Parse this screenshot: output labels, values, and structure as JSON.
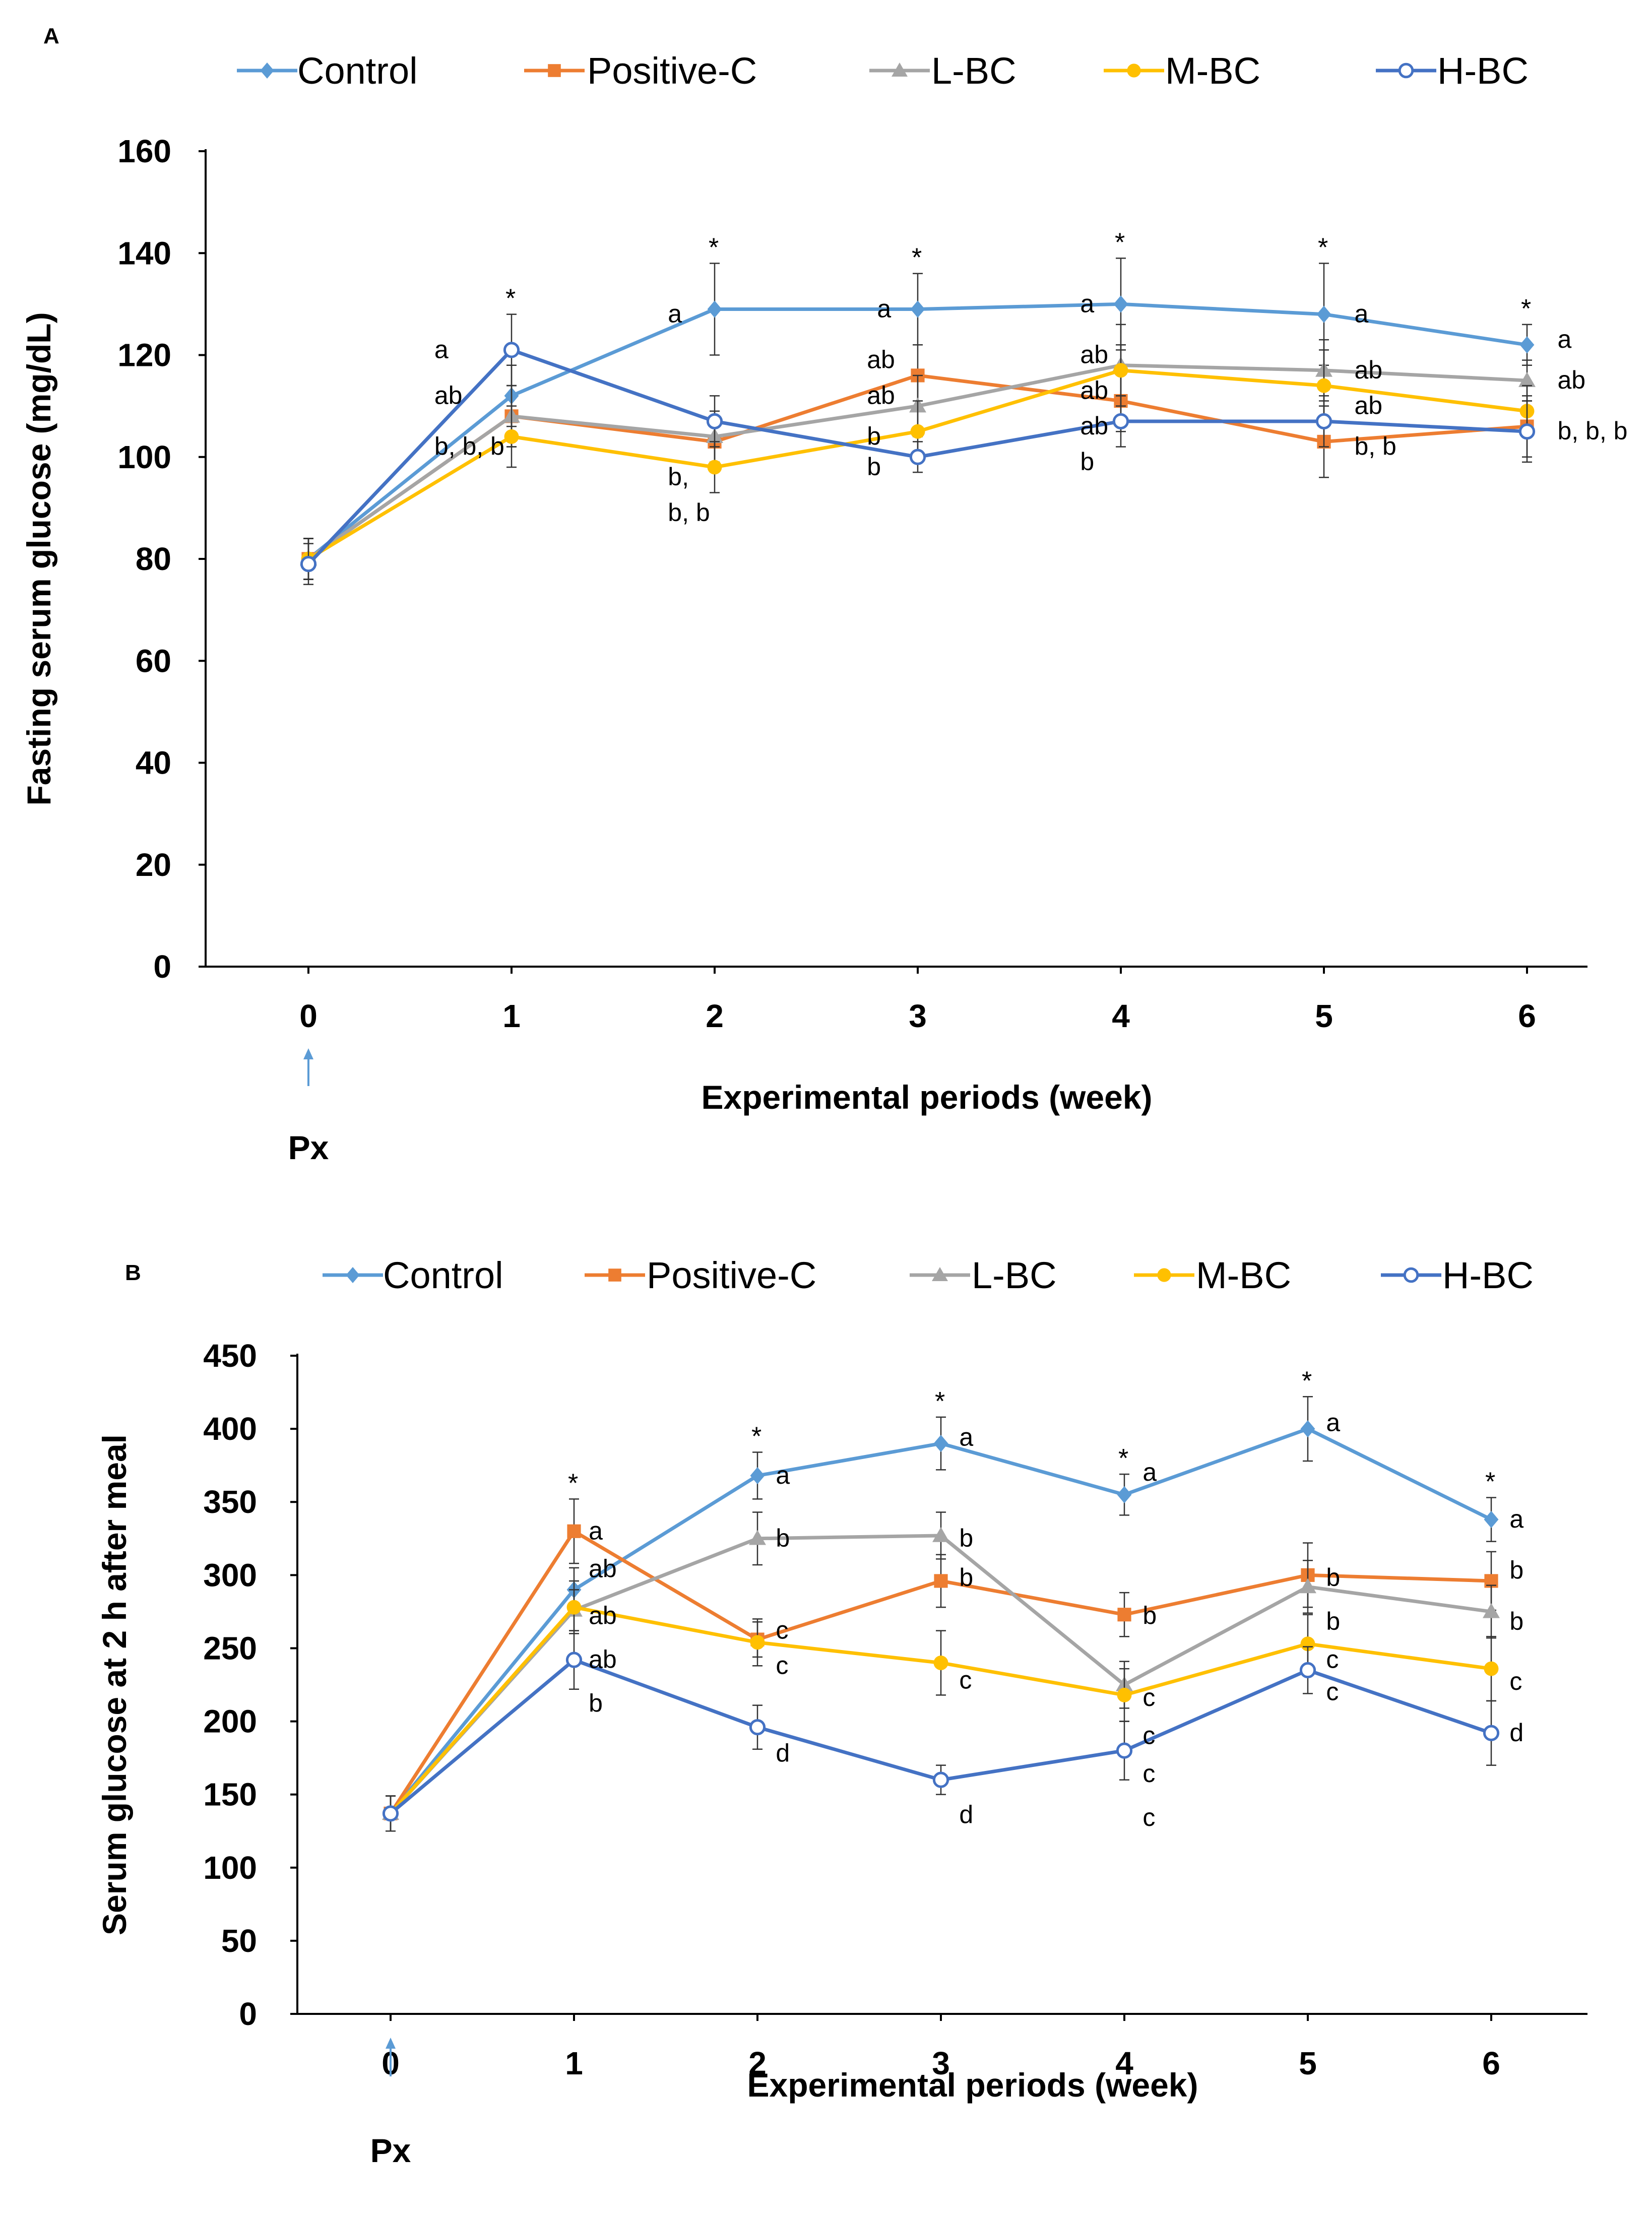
{
  "colors": {
    "Control": "#5B9BD5",
    "Positive-C": "#ED7D31",
    "L-BC": "#A5A5A5",
    "M-BC": "#FFC000",
    "H-BC": "#4472C4",
    "arrow": "#5B9BD5",
    "axis": "#000000"
  },
  "marker_icons": {
    "Control": "diamond-marker-icon",
    "Positive-C": "square-marker-icon",
    "L-BC": "triangle-marker-icon",
    "M-BC": "circle-marker-icon",
    "H-BC": "open-circle-marker-icon"
  },
  "chart_data": [
    {
      "panel_label": "A",
      "type": "line",
      "x": [
        0,
        1,
        2,
        3,
        4,
        5,
        6
      ],
      "x_tick_labels": [
        "0",
        "1",
        "2",
        "3",
        "4",
        "5",
        "6"
      ],
      "ylim": [
        0,
        160
      ],
      "y_ticks": [
        0,
        20,
        40,
        60,
        80,
        100,
        120,
        140,
        160
      ],
      "y_tick_labels": [
        "0",
        "20",
        "40",
        "60",
        "80",
        "100",
        "120",
        "140",
        "160"
      ],
      "xlabel": "Experimental periods (week)",
      "ylabel": "Fasting serum glucose (mg/dL)",
      "annotation_arrow": {
        "x": 0,
        "label": "Px"
      },
      "legend": [
        "Control",
        "Positive-C",
        "L-BC",
        "M-BC",
        "H-BC"
      ],
      "legend_position": "top",
      "series": [
        {
          "name": "Control",
          "values": [
            80,
            112,
            129,
            129,
            130,
            128,
            122
          ],
          "errors": [
            4,
            6,
            9,
            7,
            9,
            10,
            4
          ]
        },
        {
          "name": "Positive-C",
          "values": [
            80,
            108,
            103,
            116,
            111,
            103,
            106
          ],
          "errors": [
            4,
            6,
            5,
            6,
            6,
            7,
            6
          ]
        },
        {
          "name": "L-BC",
          "values": [
            80,
            108,
            104,
            110,
            118,
            117,
            115
          ],
          "errors": [
            4,
            6,
            5,
            6,
            8,
            6,
            4
          ]
        },
        {
          "name": "M-BC",
          "values": [
            80,
            104,
            98,
            105,
            117,
            114,
            109
          ],
          "errors": [
            4,
            6,
            5,
            6,
            5,
            7,
            5
          ]
        },
        {
          "name": "H-BC",
          "values": [
            79,
            121,
            107,
            100,
            107,
            107,
            105
          ],
          "errors": [
            4,
            7,
            5,
            3,
            5,
            5,
            6
          ]
        }
      ],
      "stars": [
        1,
        2,
        3,
        4,
        5,
        6
      ],
      "significance_letters": [
        {
          "x": 0.62,
          "y": 121,
          "text": "a"
        },
        {
          "x": 0.62,
          "y": 112,
          "text": "ab"
        },
        {
          "x": 0.62,
          "y": 102,
          "text": "b, b, b"
        },
        {
          "x": 1.77,
          "y": 128,
          "text": "a"
        },
        {
          "x": 1.77,
          "y": 96,
          "text": "b,"
        },
        {
          "x": 1.77,
          "y": 89,
          "text": "b, b"
        },
        {
          "x": 2.8,
          "y": 129,
          "text": "a"
        },
        {
          "x": 2.75,
          "y": 119,
          "text": "ab"
        },
        {
          "x": 2.75,
          "y": 112,
          "text": "ab"
        },
        {
          "x": 2.75,
          "y": 104,
          "text": "b"
        },
        {
          "x": 2.75,
          "y": 98,
          "text": "b"
        },
        {
          "x": 3.8,
          "y": 130,
          "text": "a"
        },
        {
          "x": 3.8,
          "y": 120,
          "text": "ab"
        },
        {
          "x": 3.8,
          "y": 113,
          "text": "ab"
        },
        {
          "x": 3.8,
          "y": 106,
          "text": "ab"
        },
        {
          "x": 3.8,
          "y": 99,
          "text": "b"
        },
        {
          "x": 5.15,
          "y": 128,
          "text": "a"
        },
        {
          "x": 5.15,
          "y": 117,
          "text": "ab"
        },
        {
          "x": 5.15,
          "y": 110,
          "text": "ab"
        },
        {
          "x": 5.15,
          "y": 102,
          "text": "b, b"
        },
        {
          "x": 6.15,
          "y": 123,
          "text": "a"
        },
        {
          "x": 6.15,
          "y": 115,
          "text": "ab"
        },
        {
          "x": 6.15,
          "y": 105,
          "text": "b, b, b"
        }
      ]
    },
    {
      "panel_label": "B",
      "type": "line",
      "x": [
        0,
        1,
        2,
        3,
        4,
        5,
        6
      ],
      "x_tick_labels": [
        "0",
        "1",
        "2",
        "3",
        "4",
        "5",
        "6"
      ],
      "ylim": [
        0,
        450
      ],
      "y_ticks": [
        0,
        50,
        100,
        150,
        200,
        250,
        300,
        350,
        400,
        450
      ],
      "y_tick_labels": [
        "0",
        "50",
        "100",
        "150",
        "200",
        "250",
        "300",
        "350",
        "400",
        "450"
      ],
      "xlabel": "Experimental periods (week)",
      "ylabel": "Serum glucose at 2 h after meal",
      "annotation_arrow": {
        "x": 0,
        "label": "Px"
      },
      "legend": [
        "Control",
        "Positive-C",
        "L-BC",
        "M-BC",
        "H-BC"
      ],
      "legend_position": "top",
      "series": [
        {
          "name": "Control",
          "values": [
            137,
            290,
            368,
            390,
            355,
            400,
            338
          ],
          "errors": [
            12,
            15,
            16,
            18,
            14,
            22,
            15
          ]
        },
        {
          "name": "Positive-C",
          "values": [
            137,
            330,
            256,
            296,
            273,
            300,
            296
          ],
          "errors": [
            12,
            22,
            12,
            18,
            15,
            22,
            20
          ]
        },
        {
          "name": "L-BC",
          "values": [
            137,
            276,
            325,
            327,
            225,
            292,
            275
          ],
          "errors": [
            12,
            14,
            18,
            16,
            16,
            18,
            18
          ]
        },
        {
          "name": "M-BC",
          "values": [
            137,
            278,
            254,
            240,
            218,
            253,
            236
          ],
          "errors": [
            12,
            18,
            16,
            22,
            18,
            20,
            22
          ]
        },
        {
          "name": "H-BC",
          "values": [
            137,
            242,
            196,
            160,
            180,
            235,
            192
          ],
          "errors": [
            12,
            20,
            15,
            10,
            20,
            16,
            22
          ]
        }
      ],
      "stars": [
        1,
        2,
        3,
        4,
        5,
        6
      ],
      "significance_letters": [
        {
          "x": 1.08,
          "y": 330,
          "text": "a"
        },
        {
          "x": 1.08,
          "y": 304,
          "text": "ab"
        },
        {
          "x": 1.08,
          "y": 272,
          "text": "ab"
        },
        {
          "x": 1.08,
          "y": 242,
          "text": "ab"
        },
        {
          "x": 1.08,
          "y": 212,
          "text": "b"
        },
        {
          "x": 2.1,
          "y": 368,
          "text": "a"
        },
        {
          "x": 2.1,
          "y": 325,
          "text": "b"
        },
        {
          "x": 2.1,
          "y": 262,
          "text": "c"
        },
        {
          "x": 2.1,
          "y": 238,
          "text": "c"
        },
        {
          "x": 2.1,
          "y": 178,
          "text": "d"
        },
        {
          "x": 3.1,
          "y": 394,
          "text": "a"
        },
        {
          "x": 3.1,
          "y": 325,
          "text": "b"
        },
        {
          "x": 3.1,
          "y": 298,
          "text": "b"
        },
        {
          "x": 3.1,
          "y": 228,
          "text": "c"
        },
        {
          "x": 3.1,
          "y": 136,
          "text": "d"
        },
        {
          "x": 4.1,
          "y": 370,
          "text": "a"
        },
        {
          "x": 4.1,
          "y": 272,
          "text": "b"
        },
        {
          "x": 4.1,
          "y": 216,
          "text": "c"
        },
        {
          "x": 4.1,
          "y": 190,
          "text": "c"
        },
        {
          "x": 4.1,
          "y": 164,
          "text": "c"
        },
        {
          "x": 4.1,
          "y": 134,
          "text": "c"
        },
        {
          "x": 5.1,
          "y": 404,
          "text": "a"
        },
        {
          "x": 5.1,
          "y": 298,
          "text": "b"
        },
        {
          "x": 5.1,
          "y": 268,
          "text": "b"
        },
        {
          "x": 5.1,
          "y": 242,
          "text": "c"
        },
        {
          "x": 5.1,
          "y": 220,
          "text": "c"
        },
        {
          "x": 6.1,
          "y": 338,
          "text": "a"
        },
        {
          "x": 6.1,
          "y": 303,
          "text": "b"
        },
        {
          "x": 6.1,
          "y": 268,
          "text": "b"
        },
        {
          "x": 6.1,
          "y": 227,
          "text": "c"
        },
        {
          "x": 6.1,
          "y": 192,
          "text": "d"
        }
      ]
    }
  ]
}
